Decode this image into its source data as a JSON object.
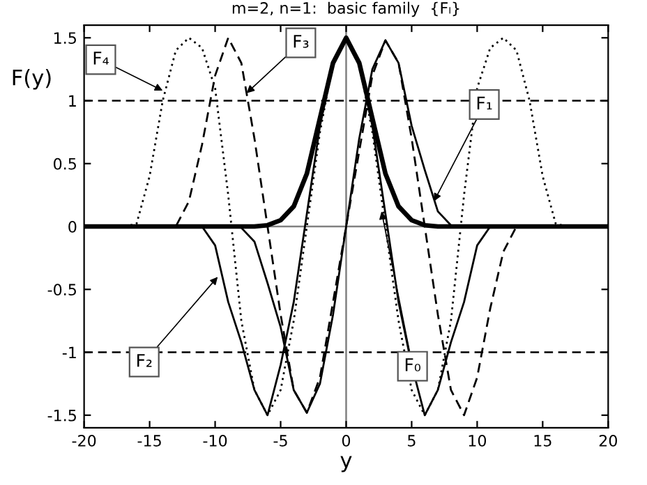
{
  "chart_data": {
    "type": "line",
    "title": "m=2, n=1:  basic family  {Fₗ}",
    "xlabel": "y",
    "ylabel": "F(y)",
    "x": [
      -20,
      -19,
      -18,
      -17,
      -16,
      -15,
      -14,
      -13,
      -12,
      -11,
      -10,
      -9,
      -8,
      -7,
      -6,
      -5,
      -4,
      -3,
      -2,
      -1,
      0,
      1,
      2,
      3,
      4,
      5,
      6,
      7,
      8,
      9,
      10,
      11,
      12,
      13,
      14,
      15,
      16,
      17,
      18,
      19,
      20
    ],
    "series": [
      {
        "color": "#000000",
        "line_style": "solid",
        "values": [
          0,
          0,
          0,
          0,
          0,
          0,
          0,
          0,
          0,
          0,
          0,
          0,
          0,
          0,
          0.01,
          0.05,
          0.16,
          0.42,
          0.86,
          1.3,
          1.5,
          1.3,
          0.86,
          0.42,
          0.16,
          0.05,
          0.01,
          0,
          0,
          0,
          0,
          0,
          0,
          0,
          0,
          0,
          0,
          0,
          0,
          0,
          0
        ]
      },
      {
        "color": "#000000",
        "line_style": "solid",
        "values": [
          0,
          0,
          0,
          0,
          0,
          0,
          0,
          0,
          0,
          0,
          0,
          0,
          -0.01,
          -0.12,
          -0.45,
          -0.8,
          -1.3,
          -1.48,
          -1.25,
          -0.7,
          0,
          0.7,
          1.25,
          1.48,
          1.3,
          0.8,
          0.45,
          0.12,
          0.01,
          0,
          0,
          0,
          0,
          0,
          0,
          0,
          0,
          0,
          0,
          0,
          0
        ]
      },
      {
        "color": "#000000",
        "line_style": "solid",
        "values": [
          0,
          0,
          0,
          0,
          0,
          0,
          0,
          0,
          0,
          0,
          -0.15,
          -0.6,
          -0.92,
          -1.3,
          -1.5,
          -1.1,
          -0.6,
          0.1,
          0.8,
          1.3,
          1.48,
          1.3,
          0.8,
          0.1,
          -0.6,
          -1.1,
          -1.5,
          -1.3,
          -0.92,
          -0.6,
          -0.15,
          0,
          0,
          0,
          0,
          0,
          0,
          0,
          0,
          0,
          0
        ]
      },
      {
        "color": "#000000",
        "line_style": "dashed",
        "values": [
          0,
          0,
          0,
          0,
          0,
          0,
          0,
          0,
          0.2,
          0.65,
          1.2,
          1.5,
          1.3,
          0.7,
          0,
          -0.7,
          -1.3,
          -1.48,
          -1.2,
          -0.6,
          0,
          0.6,
          1.2,
          1.48,
          1.3,
          0.7,
          0,
          -0.7,
          -1.3,
          -1.5,
          -1.2,
          -0.65,
          -0.2,
          0,
          0,
          0,
          0,
          0,
          0,
          0,
          0
        ]
      },
      {
        "color": "#000000",
        "line_style": "dotted",
        "values": [
          0,
          0,
          0,
          0,
          0.02,
          0.4,
          1.0,
          1.4,
          1.5,
          1.42,
          1.1,
          0.25,
          -0.75,
          -1.3,
          -1.5,
          -1.3,
          -0.75,
          0,
          0.75,
          1.3,
          1.5,
          1.3,
          0.75,
          0,
          -0.75,
          -1.3,
          -1.5,
          -1.3,
          -0.75,
          0.25,
          1.1,
          1.42,
          1.5,
          1.4,
          1.0,
          0.4,
          0.02,
          0,
          0,
          0,
          0
        ]
      }
    ],
    "annotations": [
      {
        "text": "F₄",
        "x": -14,
        "y": 1.08
      },
      {
        "text": "F₃",
        "x": -7.6,
        "y": 1.06
      },
      {
        "text": "F₁",
        "x": 6.7,
        "y": 0.2
      },
      {
        "text": "F₂",
        "x": -9.8,
        "y": -0.4
      },
      {
        "text": "F₀",
        "x": 2.7,
        "y": 0.12
      }
    ],
    "ref_lines": [
      {
        "axis": "y",
        "value": 1,
        "color": "#000000",
        "line_style": "dashed"
      },
      {
        "axis": "y",
        "value": -1,
        "color": "#000000",
        "line_style": "dashed"
      },
      {
        "axis": "x",
        "value": 0,
        "color": "#808080",
        "line_style": "solid"
      },
      {
        "axis": "y",
        "value": 0,
        "color": "#808080",
        "line_style": "solid"
      }
    ],
    "xlim": [
      -20,
      20
    ],
    "ylim": [
      -1.6,
      1.6
    ],
    "xticks": [
      -20,
      -15,
      -10,
      -5,
      0,
      5,
      10,
      15,
      20
    ],
    "yticks": [
      -1.5,
      -1,
      -0.5,
      0,
      0.5,
      1,
      1.5
    ],
    "grid": false,
    "legend": false,
    "marker": "none"
  }
}
